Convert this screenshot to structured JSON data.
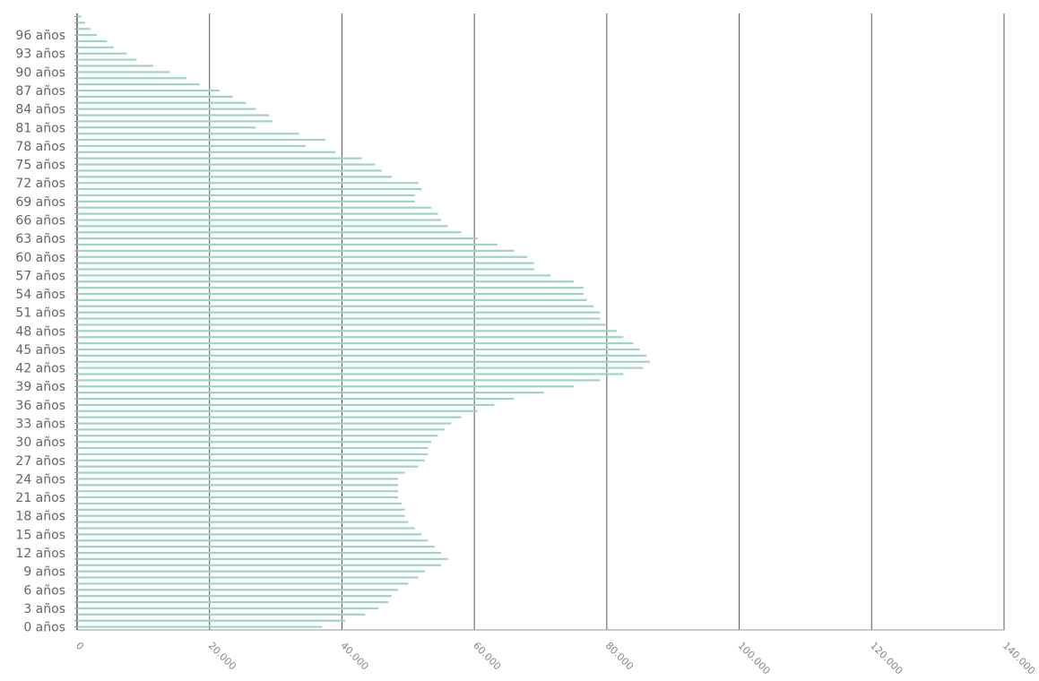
{
  "chart_data": {
    "type": "bar",
    "orientation": "horizontal",
    "grid": true,
    "xlim": [
      0,
      140000
    ],
    "x_ticks": [
      {
        "value": 0,
        "label": "0"
      },
      {
        "value": 20000,
        "label": "20.000"
      },
      {
        "value": 40000,
        "label": "40.000"
      },
      {
        "value": 60000,
        "label": "60.000"
      },
      {
        "value": 80000,
        "label": "80.000"
      },
      {
        "value": 100000,
        "label": "100.000"
      },
      {
        "value": 120000,
        "label": "120.000"
      },
      {
        "value": 140000,
        "label": "140.000"
      }
    ],
    "categories": [
      "0 años",
      "1 años",
      "2 años",
      "3 años",
      "4 años",
      "5 años",
      "6 años",
      "7 años",
      "8 años",
      "9 años",
      "10 años",
      "11 años",
      "12 años",
      "13 años",
      "14 años",
      "15 años",
      "16 años",
      "17 años",
      "18 años",
      "19 años",
      "20 años",
      "21 años",
      "22 años",
      "23 años",
      "24 años",
      "25 años",
      "26 años",
      "27 años",
      "28 años",
      "29 años",
      "30 años",
      "31 años",
      "32 años",
      "33 años",
      "34 años",
      "35 años",
      "36 años",
      "37 años",
      "38 años",
      "39 años",
      "40 años",
      "41 años",
      "42 años",
      "43 años",
      "44 años",
      "45 años",
      "46 años",
      "47 años",
      "48 años",
      "49 años",
      "50 años",
      "51 años",
      "52 años",
      "53 años",
      "54 años",
      "55 años",
      "56 años",
      "57 años",
      "58 años",
      "59 años",
      "60 años",
      "61 años",
      "62 años",
      "63 años",
      "64 años",
      "65 años",
      "66 años",
      "67 años",
      "68 años",
      "69 años",
      "70 años",
      "71 años",
      "72 años",
      "73 años",
      "74 años",
      "75 años",
      "76 años",
      "77 años",
      "78 años",
      "79 años",
      "80 años",
      "81 años",
      "82 años",
      "83 años",
      "84 años",
      "85 años",
      "86 años",
      "87 años",
      "88 años",
      "89 años",
      "90 años",
      "91 años",
      "92 años",
      "93 años",
      "94 años",
      "95 años",
      "96 años",
      "97 años",
      "98 años",
      "99 años"
    ],
    "visible_category_labels": [
      "0 años",
      "3 años",
      "6 años",
      "9 años",
      "12 años",
      "15 años",
      "18 años",
      "21 años",
      "24 años",
      "27 años",
      "30 años",
      "33 años",
      "36 años",
      "39 años",
      "42 años",
      "45 años",
      "48 años",
      "51 años",
      "54 años",
      "57 años",
      "60 años",
      "63 años",
      "66 años",
      "69 años",
      "72 años",
      "75 años",
      "78 años",
      "81 años",
      "84 años",
      "87 años",
      "90 años",
      "93 años",
      "96 años"
    ],
    "values": [
      37000,
      40500,
      43500,
      45500,
      47000,
      47500,
      48500,
      50000,
      51500,
      52500,
      55000,
      56000,
      55000,
      54000,
      53000,
      52000,
      51000,
      50000,
      49500,
      49500,
      49000,
      48500,
      48500,
      48500,
      48500,
      49500,
      51500,
      52500,
      53000,
      53000,
      53500,
      54500,
      55500,
      56500,
      58000,
      60500,
      63000,
      66000,
      70500,
      75000,
      79000,
      82500,
      85500,
      86500,
      86000,
      85000,
      84000,
      82500,
      81500,
      80000,
      79000,
      79000,
      78000,
      77000,
      76500,
      76500,
      75000,
      71500,
      69000,
      69000,
      68000,
      66000,
      63500,
      60500,
      58000,
      56000,
      55000,
      54500,
      53500,
      51000,
      51000,
      52000,
      51500,
      47500,
      46000,
      45000,
      43000,
      39000,
      34500,
      37500,
      33500,
      27000,
      29500,
      29000,
      27000,
      25500,
      23500,
      21500,
      18500,
      16500,
      14000,
      11500,
      9000,
      7500,
      5500,
      4500,
      3000,
      2000,
      1200,
      600
    ]
  },
  "colors": {
    "bar": "#9fd3c7",
    "grid": "#555555",
    "label": "#666666",
    "tick": "#888888"
  }
}
